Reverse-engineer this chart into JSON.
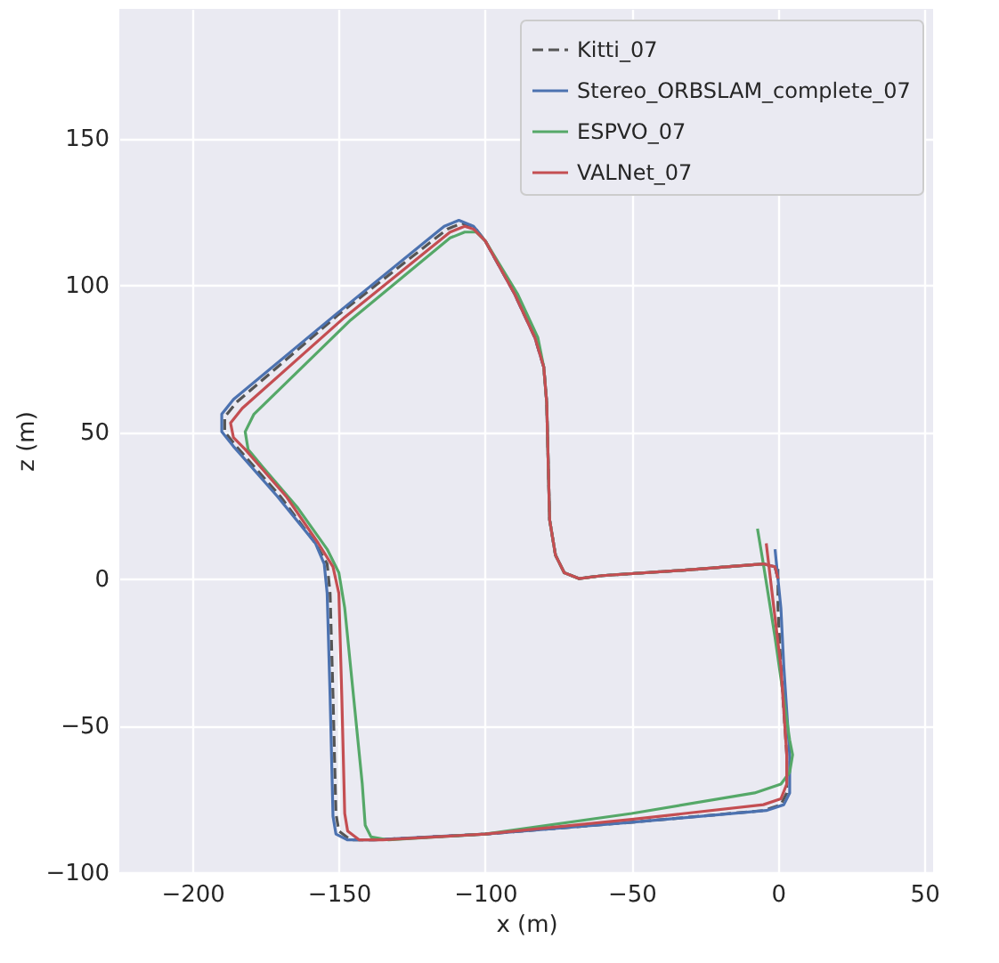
{
  "chart_data": {
    "type": "line",
    "xlabel": "x (m)",
    "ylabel": "z (m)",
    "xlim": [
      -225,
      53
    ],
    "ylim": [
      -100,
      194
    ],
    "xticks": [
      -200,
      -150,
      -100,
      -50,
      0,
      50
    ],
    "yticks": [
      -100,
      -50,
      0,
      50,
      100,
      150
    ],
    "grid": true,
    "legend": "top right",
    "marker": "none",
    "series": [
      {
        "name": "Kitti_07",
        "color": "#555555",
        "line_style": "dashed",
        "x": [
          0,
          -1,
          -5,
          -30,
          -60,
          -68,
          -73,
          -76,
          -78,
          -79,
          -80,
          -83,
          -90,
          -100,
          -104,
          -108,
          -113,
          -150,
          -185,
          -189,
          -189,
          -185,
          -170,
          -158,
          -154,
          -153,
          -152,
          -151,
          -150,
          -146,
          -138,
          -100,
          -50,
          -5,
          1,
          3,
          3,
          1,
          0,
          0
        ],
        "values": [
          0,
          4,
          5,
          3,
          1,
          0,
          2,
          8,
          20,
          60,
          72,
          82,
          97,
          115,
          120,
          121,
          119,
          90,
          60,
          55,
          50,
          45,
          28,
          12,
          5,
          -5,
          -40,
          -80,
          -86,
          -89,
          -89,
          -87,
          -83,
          -79,
          -77,
          -73,
          -60,
          -30,
          -10,
          5
        ]
      },
      {
        "name": "Stereo_ORBSLAM_complete_07",
        "color": "#4c72b0",
        "line_style": "solid",
        "x": [
          0,
          -1,
          -5,
          -30,
          -60,
          -68,
          -73,
          -76,
          -78,
          -79,
          -80,
          -83,
          -90,
          -100,
          -104,
          -109,
          -114,
          -151,
          -186,
          -190,
          -190,
          -186,
          -171,
          -158,
          -155,
          -154,
          -153,
          -152,
          -151,
          -147,
          -138,
          -100,
          -50,
          -4,
          2,
          4,
          4,
          2,
          1,
          -1
        ],
        "values": [
          0,
          4,
          5,
          3,
          1,
          0,
          2,
          8,
          20,
          60,
          72,
          82,
          97,
          115,
          120,
          122,
          120,
          90,
          61,
          56,
          50,
          45,
          28,
          12,
          5,
          -5,
          -40,
          -81,
          -87,
          -89,
          -89,
          -87,
          -83,
          -79,
          -77,
          -73,
          -60,
          -30,
          -10,
          10
        ]
      },
      {
        "name": "ESPVO_07",
        "color": "#55a868",
        "line_style": "solid",
        "x": [
          -5,
          -30,
          -60,
          -68,
          -73,
          -76,
          -78,
          -79,
          -80,
          -82,
          -89,
          -100,
          -103,
          -107,
          -112,
          -146,
          -179,
          -182,
          -181,
          -176,
          -164,
          -154,
          -150,
          -148,
          -145,
          -142,
          -141,
          -139,
          -133,
          -100,
          -50,
          -8,
          1,
          4,
          5,
          4,
          -1,
          -5,
          -7
        ],
        "values": [
          5,
          3,
          1,
          0,
          2,
          8,
          20,
          60,
          72,
          82,
          97,
          115,
          118,
          118,
          116,
          88,
          56,
          50,
          44,
          38,
          24,
          10,
          2,
          -10,
          -40,
          -70,
          -84,
          -88,
          -89,
          -87,
          -80,
          -73,
          -70,
          -66,
          -60,
          -55,
          -20,
          5,
          17
        ]
      },
      {
        "name": "VALNet_07",
        "color": "#c44e52",
        "line_style": "solid",
        "x": [
          0,
          -1,
          -5,
          -30,
          -60,
          -68,
          -73,
          -76,
          -78,
          -79,
          -80,
          -83,
          -90,
          -100,
          -104,
          -107,
          -112,
          -148,
          -183,
          -187,
          -186,
          -182,
          -168,
          -157,
          -152,
          -150,
          -149,
          -148,
          -147,
          -143,
          -135,
          -100,
          -50,
          -5,
          1,
          3,
          3,
          1,
          -2,
          -4
        ],
        "values": [
          0,
          4,
          5,
          3,
          1,
          0,
          2,
          8,
          20,
          60,
          72,
          82,
          97,
          115,
          119,
          120,
          118,
          89,
          58,
          53,
          48,
          44,
          28,
          12,
          4,
          -5,
          -40,
          -80,
          -86,
          -89,
          -89,
          -87,
          -82,
          -77,
          -75,
          -70,
          -60,
          -30,
          -5,
          12
        ]
      }
    ]
  }
}
